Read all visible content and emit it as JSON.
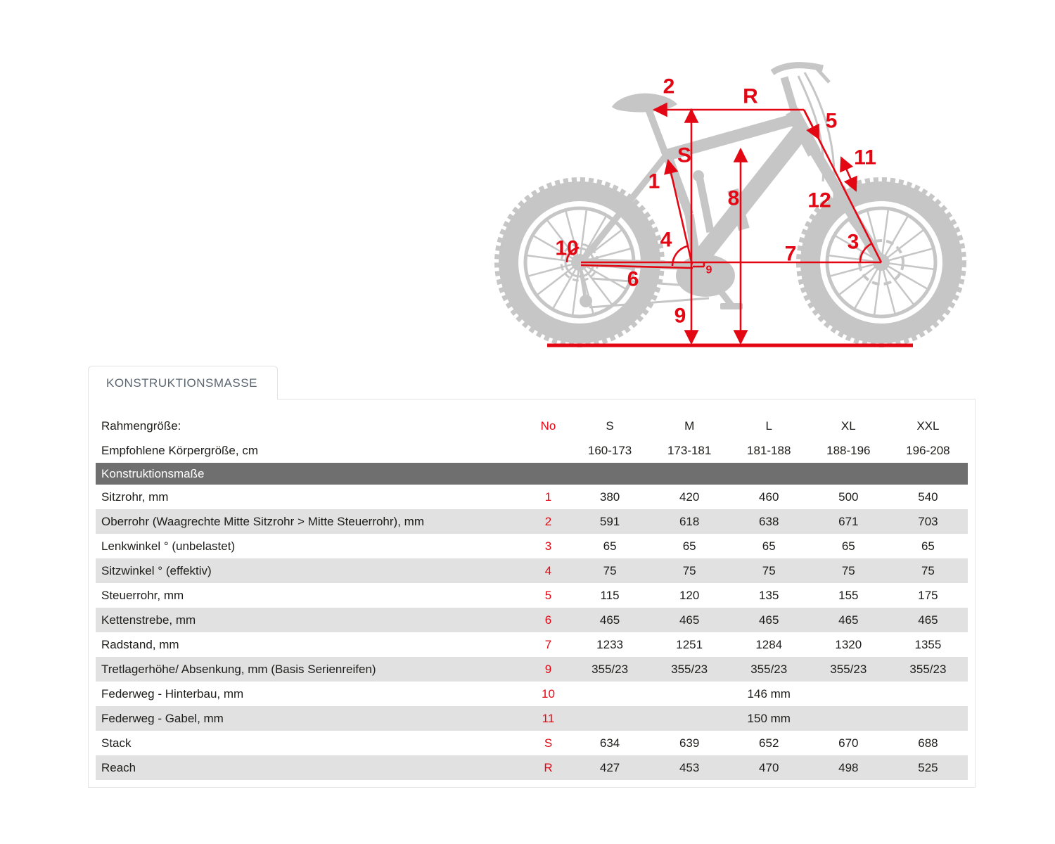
{
  "colors": {
    "accent_red": "#e30613",
    "bike_gray": "#c6c6c6",
    "section_band_gray": "#6f6f6f",
    "row_alt_gray": "#e1e1e1",
    "tab_text_gray": "#5a6570"
  },
  "diagram": {
    "labels": {
      "seat_tube": "1",
      "top_tube": "2",
      "head_angle": "3",
      "seat_angle": "4",
      "head_tube": "5",
      "chainstay": "6",
      "wheelbase": "7",
      "standover": "8",
      "bb_height": "9",
      "bb_drop": "9",
      "rear_travel": "10",
      "fork_travel": "11",
      "fork_offset": "12",
      "stack": "S",
      "reach": "R"
    }
  },
  "tab": {
    "label": "KONSTRUKTIONSMASSE"
  },
  "table": {
    "frame_size_label": "Rahmengröße:",
    "no_header": "No",
    "sizes": [
      "S",
      "M",
      "L",
      "XL",
      "XXL"
    ],
    "body_height_label": "Empfohlene Körpergröße, cm",
    "body_heights": [
      "160-173",
      "173-181",
      "181-188",
      "188-196",
      "196-208"
    ],
    "section_header": "Konstruktionsmaße",
    "rows": [
      {
        "label": "Sitzrohr, mm",
        "no": "1",
        "values": [
          "380",
          "420",
          "460",
          "500",
          "540"
        ]
      },
      {
        "label": "Oberrohr (Waagrechte Mitte Sitzrohr > Mitte Steuerrohr), mm",
        "no": "2",
        "values": [
          "591",
          "618",
          "638",
          "671",
          "703"
        ]
      },
      {
        "label": "Lenkwinkel ° (unbelastet)",
        "no": "3",
        "values": [
          "65",
          "65",
          "65",
          "65",
          "65"
        ]
      },
      {
        "label": "Sitzwinkel ° (effektiv)",
        "no": "4",
        "values": [
          "75",
          "75",
          "75",
          "75",
          "75"
        ]
      },
      {
        "label": "Steuerrohr, mm",
        "no": "5",
        "values": [
          "115",
          "120",
          "135",
          "155",
          "175"
        ]
      },
      {
        "label": "Kettenstrebe, mm",
        "no": "6",
        "values": [
          "465",
          "465",
          "465",
          "465",
          "465"
        ]
      },
      {
        "label": "Radstand, mm",
        "no": "7",
        "values": [
          "1233",
          "1251",
          "1284",
          "1320",
          "1355"
        ]
      },
      {
        "label": "Tretlagerhöhe/ Absenkung, mm (Basis Serienreifen)",
        "no": "9",
        "values": [
          "355/23",
          "355/23",
          "355/23",
          "355/23",
          "355/23"
        ]
      },
      {
        "label": "Federweg - Hinterbau, mm",
        "no": "10",
        "span_value": "146 mm"
      },
      {
        "label": "Federweg - Gabel, mm",
        "no": "11",
        "span_value": "150 mm"
      },
      {
        "label": "Stack",
        "no": "S",
        "values": [
          "634",
          "639",
          "652",
          "670",
          "688"
        ]
      },
      {
        "label": "Reach",
        "no": "R",
        "values": [
          "427",
          "453",
          "470",
          "498",
          "525"
        ]
      }
    ]
  }
}
